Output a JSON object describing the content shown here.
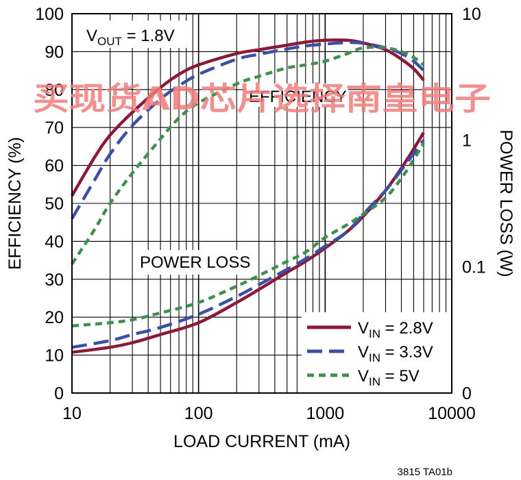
{
  "chart_data": {
    "type": "line",
    "xlabel": "LOAD CURRENT (mA)",
    "ylabel_left": "EFFICIENCY (%)",
    "ylabel_right": "POWER LOSS (W)",
    "x_scale": "log",
    "xlim": [
      10,
      10000
    ],
    "ylim_left": [
      0,
      100
    ],
    "ylim_right": [
      0.01,
      10
    ],
    "grid": true,
    "x_ticks": [
      "10",
      "100",
      "1000",
      "10000"
    ],
    "y_ticks_left": [
      "0",
      "10",
      "20",
      "30",
      "40",
      "50",
      "60",
      "70",
      "80",
      "90",
      "100"
    ],
    "y_ticks_right": [
      {
        "label": "0",
        "value": 0.01
      },
      {
        "label": "0.1",
        "value": 0.1
      },
      {
        "label": "1",
        "value": 1
      },
      {
        "label": "10",
        "value": 10
      }
    ],
    "annotations": {
      "vout_prefix": "V",
      "vout_sub": "OUT",
      "vout_value": " = 1.8V",
      "efficiency": "EFFICIENCY",
      "power_loss": "POWER LOSS"
    },
    "legend_placement": "bottom-right",
    "series": [
      {
        "legend_prefix": "V",
        "legend_sub": "IN",
        "legend_value": " = 2.8V",
        "color": "#8b1a3a",
        "dash": "solid",
        "efficiency": [
          [
            10,
            52
          ],
          [
            15,
            62
          ],
          [
            20,
            68
          ],
          [
            30,
            74
          ],
          [
            50,
            80.5
          ],
          [
            70,
            84
          ],
          [
            100,
            86.5
          ],
          [
            200,
            89.5
          ],
          [
            300,
            90.5
          ],
          [
            500,
            91.7
          ],
          [
            700,
            92.5
          ],
          [
            1000,
            93
          ],
          [
            1500,
            93
          ],
          [
            2000,
            92.3
          ],
          [
            3000,
            90.5
          ],
          [
            4000,
            88
          ],
          [
            5000,
            85.5
          ],
          [
            6000,
            82.5
          ]
        ],
        "power_loss": [
          [
            10,
            0.021
          ],
          [
            20,
            0.023
          ],
          [
            30,
            0.025
          ],
          [
            50,
            0.029
          ],
          [
            100,
            0.036
          ],
          [
            200,
            0.052
          ],
          [
            300,
            0.066
          ],
          [
            500,
            0.09
          ],
          [
            700,
            0.11
          ],
          [
            1000,
            0.14
          ],
          [
            1500,
            0.19
          ],
          [
            2000,
            0.25
          ],
          [
            3000,
            0.4
          ],
          [
            4000,
            0.6
          ],
          [
            5000,
            0.85
          ],
          [
            6000,
            1.15
          ]
        ]
      },
      {
        "legend_prefix": "V",
        "legend_sub": "IN",
        "legend_value": " = 3.3V",
        "color": "#3b4fa5",
        "dash": "long-dash",
        "efficiency": [
          [
            10,
            46
          ],
          [
            15,
            56
          ],
          [
            20,
            63
          ],
          [
            30,
            70.5
          ],
          [
            50,
            77.5
          ],
          [
            70,
            81
          ],
          [
            100,
            84
          ],
          [
            200,
            88
          ],
          [
            300,
            89.3
          ],
          [
            500,
            90.7
          ],
          [
            700,
            91.5
          ],
          [
            1000,
            92
          ],
          [
            1500,
            92.4
          ],
          [
            2000,
            92.2
          ],
          [
            3000,
            91
          ],
          [
            4000,
            89.5
          ],
          [
            5000,
            87.5
          ],
          [
            6000,
            85
          ]
        ],
        "power_loss": [
          [
            10,
            0.023
          ],
          [
            20,
            0.026
          ],
          [
            30,
            0.029
          ],
          [
            50,
            0.033
          ],
          [
            100,
            0.042
          ],
          [
            200,
            0.058
          ],
          [
            300,
            0.072
          ],
          [
            500,
            0.095
          ],
          [
            700,
            0.115
          ],
          [
            1000,
            0.145
          ],
          [
            1500,
            0.19
          ],
          [
            2000,
            0.26
          ],
          [
            3000,
            0.4
          ],
          [
            4000,
            0.58
          ],
          [
            5000,
            0.78
          ],
          [
            6000,
            1.0
          ]
        ]
      },
      {
        "legend_prefix": "V",
        "legend_sub": "IN",
        "legend_value": " = 5V",
        "color": "#3f8f4e",
        "dash": "short-dash",
        "efficiency": [
          [
            10,
            34
          ],
          [
            15,
            43
          ],
          [
            20,
            50
          ],
          [
            30,
            58
          ],
          [
            50,
            67
          ],
          [
            70,
            72.5
          ],
          [
            100,
            76.5
          ],
          [
            200,
            81.5
          ],
          [
            300,
            83.5
          ],
          [
            500,
            85.7
          ],
          [
            700,
            86.5
          ],
          [
            1000,
            87.5
          ],
          [
            1500,
            89.5
          ],
          [
            2000,
            91
          ],
          [
            3000,
            91
          ],
          [
            4000,
            90
          ],
          [
            5000,
            88.5
          ],
          [
            6000,
            86.5
          ]
        ],
        "power_loss": [
          [
            10,
            0.034
          ],
          [
            20,
            0.036
          ],
          [
            30,
            0.038
          ],
          [
            50,
            0.043
          ],
          [
            100,
            0.052
          ],
          [
            200,
            0.07
          ],
          [
            300,
            0.085
          ],
          [
            500,
            0.11
          ],
          [
            700,
            0.13
          ],
          [
            1000,
            0.17
          ],
          [
            1500,
            0.215
          ],
          [
            2000,
            0.26
          ],
          [
            3000,
            0.35
          ],
          [
            4000,
            0.5
          ],
          [
            5000,
            0.7
          ],
          [
            6000,
            0.95
          ]
        ]
      }
    ]
  },
  "watermark": "买现货AD芯片选择南皇电子",
  "figure_code": "3815 TA01b"
}
